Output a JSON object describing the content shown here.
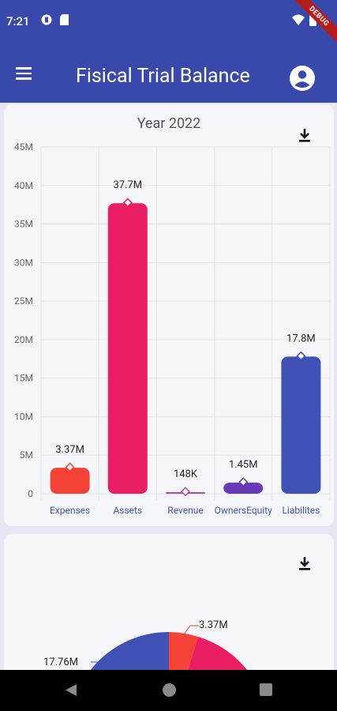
{
  "status_bar": {
    "time": "7:21",
    "debug_label": "DEBUG"
  },
  "app_bar": {
    "title": "Fisical Trial Balance"
  },
  "bar_card": {
    "title": "Year 2022"
  },
  "pie_card": {
    "labels": [
      "3.37M",
      "17.76M"
    ]
  },
  "colors": {
    "primary": "#3949ab",
    "expenses": "#f44336",
    "assets": "#e91e63",
    "revenue": "#ab47bc",
    "owners_equity": "#673ab7",
    "liabilities": "#3f51b5"
  },
  "chart_data": [
    {
      "type": "bar",
      "title": "Year 2022",
      "categories": [
        "Expenses",
        "Assets",
        "Revenue",
        "OwnersEquity",
        "Liabilites"
      ],
      "values": [
        3370000,
        37700000,
        148000,
        1450000,
        17800000
      ],
      "data_labels": [
        "3.37M",
        "37.7M",
        "148K",
        "1.45M",
        "17.8M"
      ],
      "ylim": [
        0,
        45000000
      ],
      "yticks": [
        "0",
        "5M",
        "10M",
        "15M",
        "20M",
        "25M",
        "30M",
        "35M",
        "40M",
        "45M"
      ],
      "grid": true
    },
    {
      "type": "pie",
      "visible_labels": [
        "3.37M",
        "17.76M"
      ],
      "partial": true
    }
  ]
}
